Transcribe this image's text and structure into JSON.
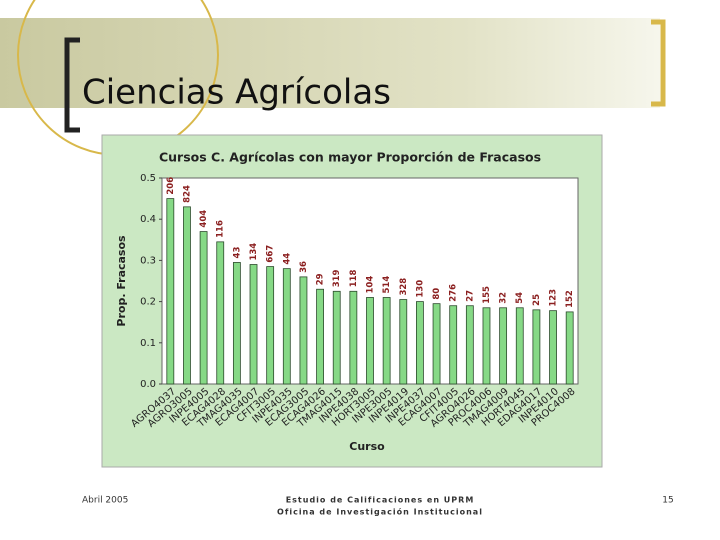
{
  "slide": {
    "title": "Ciencias Agrícolas",
    "footer_date": "Abril 2005",
    "footer_lines": [
      "Estudio de Calificaciones en UPRM",
      "Oficina de Investigación Institucional"
    ],
    "page_number": "15"
  },
  "chart_data": {
    "type": "bar",
    "title": "Cursos C. Agrícolas con mayor Proporción de Fracasos",
    "x_label": "Curso",
    "y_label": "Prop. Fracasos",
    "categories": [
      "AGRO4037",
      "AGRO3005",
      "INPE4005",
      "ECAG4028",
      "TMAG4035",
      "ECAG4007",
      "CFIT3005",
      "INPE4035",
      "ECAG3005",
      "ECAG4026",
      "TMAG4015",
      "INPE4038",
      "HORT3005",
      "INPE3005",
      "INPE4019",
      "INPE4037",
      "ECAG4007",
      "CFIT4005",
      "AGRO4026",
      "PROC4006",
      "TMAG4009",
      "HORT4045",
      "EDAG4017",
      "INPE4010",
      "PROC4008"
    ],
    "values": [
      0.45,
      0.43,
      0.37,
      0.345,
      0.295,
      0.29,
      0.285,
      0.28,
      0.26,
      0.23,
      0.225,
      0.225,
      0.21,
      0.21,
      0.205,
      0.2,
      0.195,
      0.19,
      0.19,
      0.185,
      0.185,
      0.185,
      0.18,
      0.178,
      0.175
    ],
    "annotations": [
      "206",
      "824",
      "404",
      "116",
      "43",
      "134",
      "667",
      "44",
      "36",
      "29",
      "319",
      "118",
      "104",
      "514",
      "328",
      "130",
      "80",
      "276",
      "27",
      "155",
      "32",
      "54",
      "25",
      "123",
      "152"
    ],
    "color": "#86d986",
    "ylim": [
      0,
      0.5
    ],
    "yticks": [
      {
        "value": 0,
        "label": "0.0"
      },
      0.1,
      0.2,
      0.3,
      0.4,
      0.5
    ]
  }
}
